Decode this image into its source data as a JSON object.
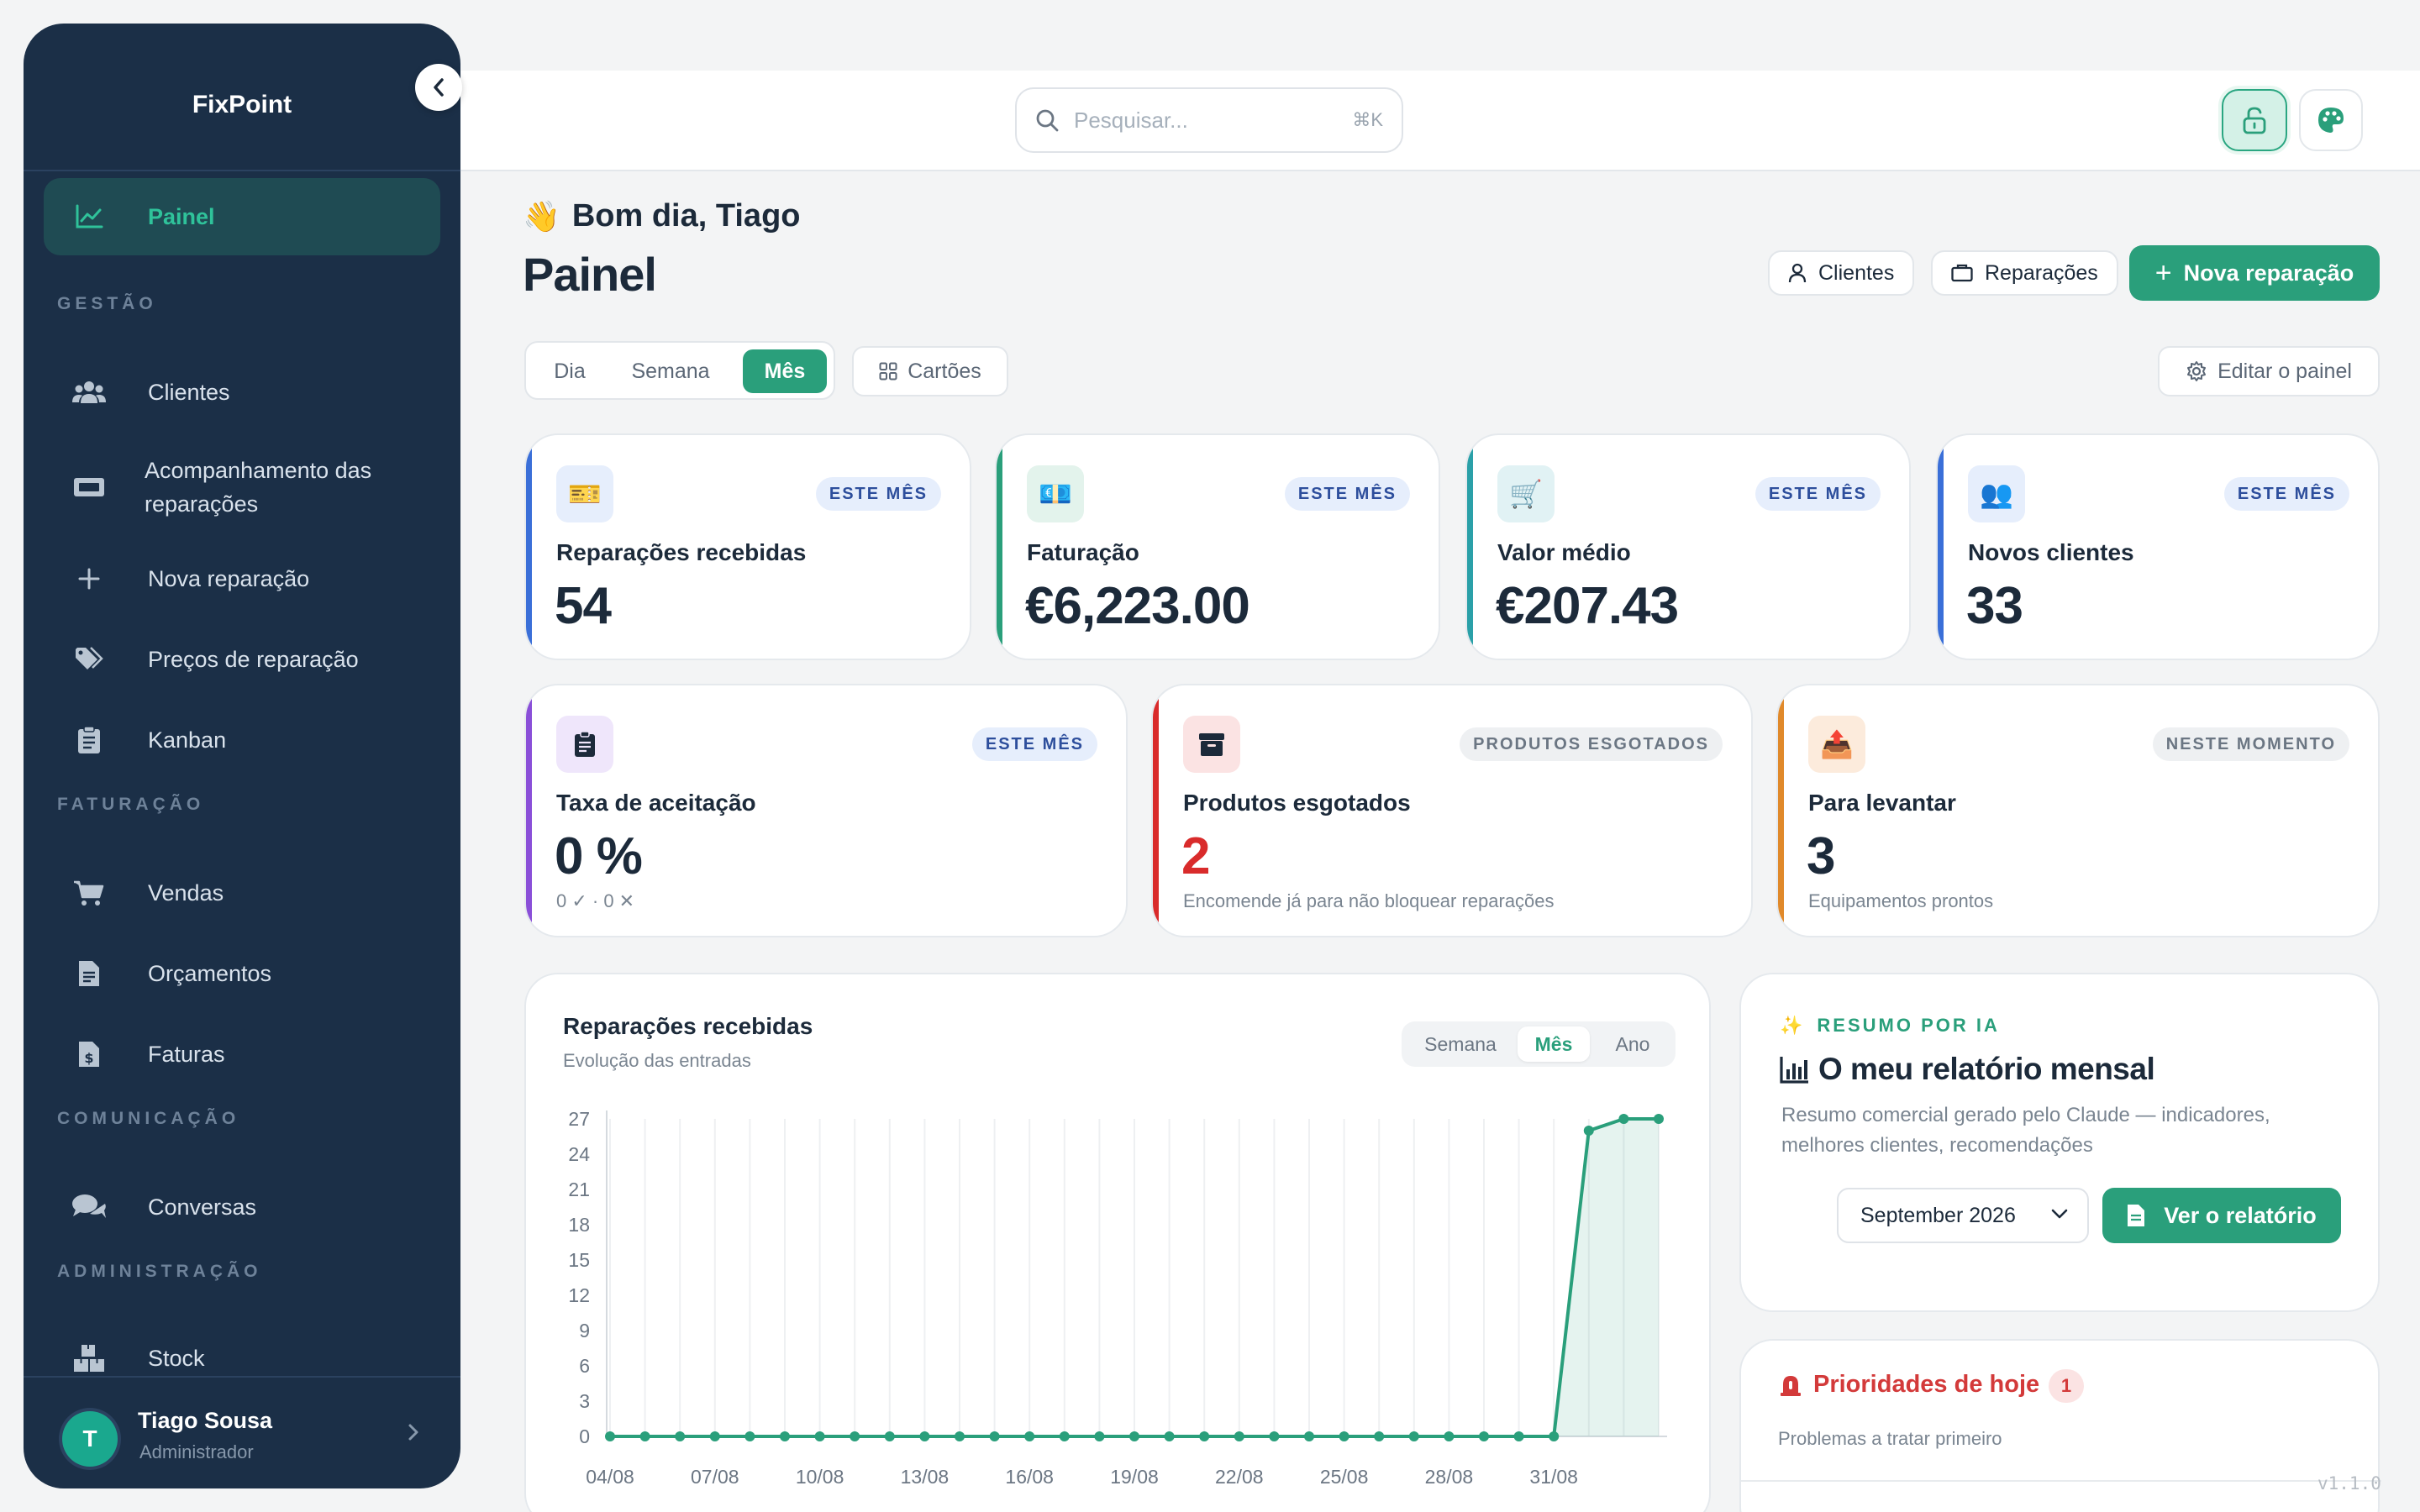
{
  "app": {
    "brand": "FixPoint",
    "version": "v1.1.0"
  },
  "sidebar": {
    "active": {
      "label": "Painel",
      "icon": "chart-line-icon"
    },
    "sections": {
      "gestao": "GESTÃO",
      "faturacao": "FATURAÇÃO",
      "comunicacao": "COMUNICAÇÃO",
      "administracao": "ADMINISTRAÇÃO"
    },
    "items": [
      {
        "label": "Clientes",
        "icon": "users-icon"
      },
      {
        "label": "Acompanhamento das reparações",
        "line1": "Acompanhamento das",
        "line2": "reparações",
        "icon": "ticket-icon"
      },
      {
        "label": "Nova reparação",
        "icon": "plus-icon"
      },
      {
        "label": "Preços de reparação",
        "icon": "tags-icon"
      },
      {
        "label": "Kanban",
        "icon": "clipboard-icon"
      },
      {
        "label": "Vendas",
        "icon": "cart-icon"
      },
      {
        "label": "Orçamentos",
        "icon": "file-icon"
      },
      {
        "label": "Faturas",
        "icon": "invoice-icon"
      },
      {
        "label": "Conversas",
        "icon": "chat-icon"
      },
      {
        "label": "Stock",
        "icon": "boxes-icon"
      }
    ],
    "user": {
      "initial": "T",
      "name": "Tiago Sousa",
      "role": "Administrador"
    }
  },
  "topbar": {
    "search_placeholder": "Pesquisar...",
    "shortcut": "⌘K"
  },
  "header": {
    "greeting": "Bom dia, Tiago",
    "greeting_emoji": "👋",
    "title": "Painel",
    "clients_btn": "Clientes",
    "repairs_btn": "Reparações",
    "new_repair_btn": "Nova reparação"
  },
  "period": {
    "options": [
      "Dia",
      "Semana",
      "Mês"
    ],
    "selected": "Mês"
  },
  "cards_btn": "Cartões",
  "edit_btn": "Editar o painel",
  "stats": [
    {
      "label": "Reparações recebidas",
      "value": "54",
      "badge": "ESTE MÊS",
      "icon": "id-card-icon",
      "emoji": "🎫",
      "accent": "#3a6fd8"
    },
    {
      "label": "Faturação",
      "value": "€6,223.00",
      "badge": "ESTE MÊS",
      "icon": "money-icon",
      "emoji": "💶",
      "accent": "#2a9f7b"
    },
    {
      "label": "Valor médio",
      "value": "€207.43",
      "badge": "ESTE MÊS",
      "icon": "cart-emoji-icon",
      "emoji": "🛒",
      "accent": "#2aa0a8"
    },
    {
      "label": "Novos clientes",
      "value": "33",
      "badge": "ESTE MÊS",
      "icon": "people-icon",
      "emoji": "👥",
      "accent": "#3a6fd8"
    },
    {
      "label": "Taxa de aceitação",
      "value": "0 %",
      "sub": "0 ✓ · 0 ✕",
      "badge": "ESTE MÊS",
      "icon": "clipboard-check-icon",
      "accent": "#8a4fd8"
    },
    {
      "label": "Produtos esgotados",
      "value": "2",
      "sub": "Encomende já para não bloquear reparações",
      "badge": "PRODUTOS ESGOTADOS",
      "icon": "box-icon",
      "accent": "#d92b2b"
    },
    {
      "label": "Para levantar",
      "value": "3",
      "sub": "Equipamentos prontos",
      "badge": "NESTE MOMENTO",
      "icon": "inbox-tray-icon",
      "emoji": "📤",
      "accent": "#e0892a"
    }
  ],
  "chart_section": {
    "title": "Reparações recebidas",
    "subtitle": "Evolução das entradas",
    "ranges": [
      "Semana",
      "Mês",
      "Ano"
    ],
    "selected_range": "Mês"
  },
  "chart_data": {
    "type": "line",
    "x": [
      "04/08",
      "05/08",
      "06/08",
      "07/08",
      "08/08",
      "09/08",
      "10/08",
      "11/08",
      "12/08",
      "13/08",
      "14/08",
      "15/08",
      "16/08",
      "17/08",
      "18/08",
      "19/08",
      "20/08",
      "21/08",
      "22/08",
      "23/08",
      "24/08",
      "25/08",
      "26/08",
      "27/08",
      "28/08",
      "29/08",
      "30/08",
      "31/08",
      "01/09",
      "02/09",
      "03/09"
    ],
    "x_tick_labels": [
      "04/08",
      "07/08",
      "10/08",
      "13/08",
      "16/08",
      "19/08",
      "22/08",
      "25/08",
      "28/08",
      "31/08"
    ],
    "values": [
      0,
      0,
      0,
      0,
      0,
      0,
      0,
      0,
      0,
      0,
      0,
      0,
      0,
      0,
      0,
      0,
      0,
      0,
      0,
      0,
      0,
      0,
      0,
      0,
      0,
      0,
      0,
      0,
      26,
      27,
      27
    ],
    "yticks": [
      0,
      3,
      6,
      9,
      12,
      15,
      18,
      21,
      24,
      27
    ],
    "ylim": [
      0,
      27
    ],
    "grid": "vertical",
    "color": "#2a9f7b"
  },
  "ai_summary": {
    "kicker": "RESUMO POR IA",
    "title": "O meu relatório mensal",
    "description": "Resumo comercial gerado pelo Claude — indicadores, melhores clientes, recomendações",
    "month": "September 2026",
    "button": "Ver o relatório"
  },
  "priorities": {
    "title": "Prioridades de hoje",
    "count": "1",
    "subtitle": "Problemas a tratar primeiro"
  }
}
